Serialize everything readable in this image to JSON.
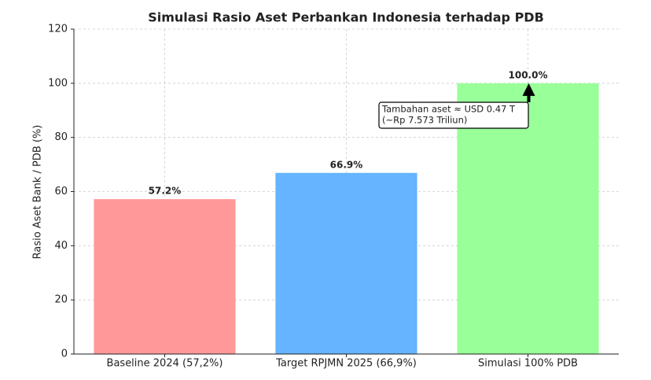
{
  "chart_data": {
    "type": "bar",
    "title": "Simulasi Rasio Aset Perbankan Indonesia terhadap PDB",
    "y_label": "Rasio Aset Bank / PDB (%)",
    "categories": [
      "Baseline 2024 (57,2%)",
      "Target RPJMN 2025 (66,9%)",
      "Simulasi 100% PDB"
    ],
    "values": [
      57.2,
      66.9,
      100
    ],
    "value_labels": [
      "57.2%",
      "66.9%",
      "100.0%"
    ],
    "colors": [
      "#ff9999",
      "#66b3ff",
      "#99ff99"
    ],
    "ylim": [
      0,
      120
    ],
    "yticks": [
      0,
      20,
      40,
      60,
      80,
      100,
      120
    ],
    "grid": true,
    "annotation": [
      "Tambahan aset ≈ USD 0.47 T",
      "(~Rp 7.573 Triliun)"
    ]
  }
}
